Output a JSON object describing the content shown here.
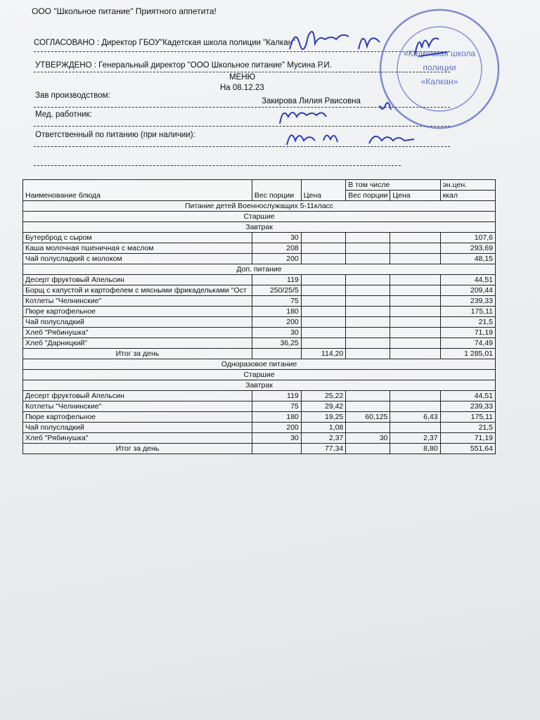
{
  "header": {
    "company": "ООО \"Школьное питание\" Приятного аппетита!",
    "approved": "СОГЛАСОВАНО : Директор ГБОУ\"Кадетская школа полиции \"Калкан\"",
    "confirmed": "УТВЕРЖДЕНО : Генеральный директор \"ООО Школьное питание\" Мусина Р.И.",
    "menu": "МЕНЮ",
    "date": "На 08.12.23",
    "production_label": "Зав производством:",
    "production_name": "Закирова Лилия Раисовна",
    "medic_label": "Мед. работник:",
    "responsible_label": "Ответственный по питанию (при наличии):"
  },
  "stamp": {
    "lines": [
      "«Кадетская школа",
      "полиции",
      "«Калкан»"
    ]
  },
  "table": {
    "columns": {
      "name": "Наименование блюда",
      "weight": "Вес порции",
      "price": "Цена",
      "including": "В том числе",
      "incl_weight": "Вес порции",
      "incl_price": "Цена",
      "energy": "эн.цен.",
      "energy_unit": "ккал"
    },
    "rows": [
      {
        "section": "Питание детей Военнослужащих 5-11класс"
      },
      {
        "section": "Старшие"
      },
      {
        "section": "Завтрак"
      },
      {
        "cells": [
          "Бутерброд с сыром",
          "30",
          null,
          null,
          null,
          "107,6"
        ]
      },
      {
        "cells": [
          "Каша молочная пшеничная с маслом",
          "208",
          null,
          null,
          null,
          "293,69"
        ]
      },
      {
        "cells": [
          "Чай полусладкий с молоком",
          "200",
          null,
          null,
          null,
          "48,15"
        ]
      },
      {
        "section": "Доп. питание"
      },
      {
        "cells": [
          "Десерт фруктовый Апельсин",
          "119",
          null,
          null,
          null,
          "44,51"
        ]
      },
      {
        "cells": [
          "Борщ с  капустой и картофелем с мясными фрикадельками \"Ост",
          "250/25/5",
          null,
          null,
          null,
          "209,44"
        ]
      },
      {
        "cells": [
          "Котлеты \"Челнинские\"",
          "75",
          null,
          null,
          null,
          "239,33"
        ]
      },
      {
        "cells": [
          "Пюре картофельное",
          "180",
          null,
          null,
          null,
          "175,11"
        ]
      },
      {
        "cells": [
          "Чай полусладкий",
          "200",
          null,
          null,
          null,
          "21,5"
        ]
      },
      {
        "cells": [
          "Хлеб \"Рябинушка\"",
          "30",
          null,
          null,
          null,
          "71,19"
        ]
      },
      {
        "cells": [
          "Хлеб \"Дарницкий\"",
          "36,25",
          null,
          null,
          null,
          "74,49"
        ]
      },
      {
        "cells": [
          "Итог за день",
          null,
          "114,20",
          null,
          null,
          "1 285,01"
        ]
      },
      {
        "section": "Одноразовое питание"
      },
      {
        "section": "Старшие"
      },
      {
        "section": "Завтрак"
      },
      {
        "cells": [
          "Десерт фруктовый Апельсин",
          "119",
          "25,22",
          null,
          null,
          "44,51"
        ]
      },
      {
        "cells": [
          "Котлеты \"Челнинские\"",
          "75",
          "29,42",
          null,
          null,
          "239,33"
        ]
      },
      {
        "cells": [
          "Пюре картофельное",
          "180",
          "19,25",
          "60,125",
          "6,43",
          "175,11"
        ]
      },
      {
        "cells": [
          "Чай полусладкий",
          "200",
          "1,08",
          null,
          null,
          "21,5"
        ]
      },
      {
        "cells": [
          "Хлеб \"Рябинушка\"",
          "30",
          "2,37",
          "30",
          "2,37",
          "71,19"
        ]
      },
      {
        "cells": [
          "Итог за день",
          null,
          "77,34",
          null,
          "8,80",
          "551,64"
        ]
      }
    ]
  }
}
